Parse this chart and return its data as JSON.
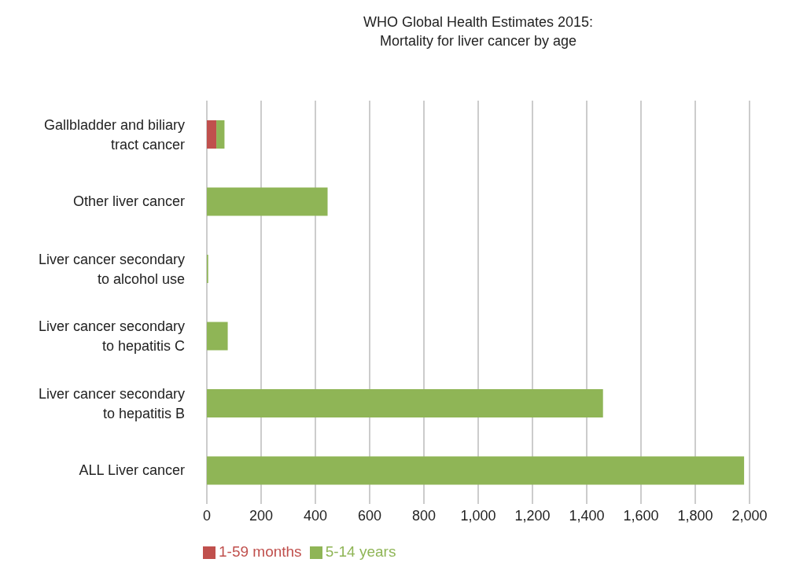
{
  "chart_data": {
    "type": "bar",
    "orientation": "horizontal",
    "stacked": true,
    "title": "WHO Global Health Estimates 2015:\nMortality for liver cancer by age",
    "categories": [
      "Gallbladder and biliary tract cancer",
      "Other liver cancer",
      "Liver cancer secondary to alcohol use",
      "Liver cancer secondary to hepatitis C",
      "Liver cancer secondary to hepatitis B",
      "ALL Liver cancer"
    ],
    "series": [
      {
        "name": "1-59 months",
        "color": "#c0504d",
        "values": [
          35,
          0,
          0,
          0,
          0,
          0
        ]
      },
      {
        "name": "5-14 years",
        "color": "#8fb556",
        "values": [
          30,
          445,
          5,
          77,
          1460,
          1980
        ]
      }
    ],
    "xlim": [
      0,
      2000
    ],
    "xticks": [
      0,
      {
        "value": 200,
        "label": "200"
      },
      {
        "value": 400,
        "label": "400"
      },
      {
        "value": 600,
        "label": "600"
      },
      {
        "value": 800,
        "label": "800"
      },
      {
        "value": 1000,
        "label": "1,000"
      },
      {
        "value": 1200,
        "label": "1,200"
      },
      {
        "value": 1400,
        "label": "1,400"
      },
      {
        "value": 1600,
        "label": "1,600"
      },
      {
        "value": 1800,
        "label": "1,800"
      },
      {
        "value": 2000,
        "label": "2,000"
      }
    ],
    "grid": "x",
    "legend": "bottom"
  }
}
